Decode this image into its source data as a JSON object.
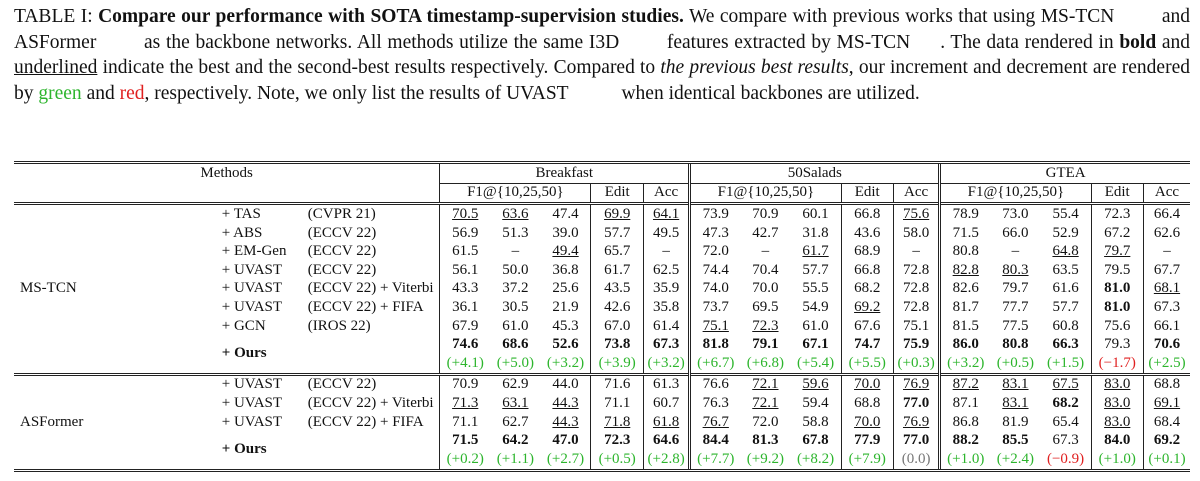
{
  "caption": {
    "label": "TABLE I:",
    "bold_title": "Compare our performance with SOTA timestamp-supervision studies.",
    "line1_rest": "We compare with previous works that",
    "line2_a": "using MS-TCN",
    "line2_b": "and ASFormer",
    "line2_c": "as the backbone networks. All methods utilize the same I3D",
    "line2_d": "features extracted",
    "line3_a": "by MS-TCN",
    "line3_b": ". The data rendered in",
    "line3_bold": "bold",
    "line3_c": "and",
    "line3_underline": "underlined",
    "line3_d": "indicate the best and the second-best results respectively.",
    "line4_a": "Compared to",
    "line4_italic": "the previous best results",
    "line4_b": ", our increment and decrement are rendered by",
    "line4_green": "green",
    "line4_c": "and",
    "line4_red": "red",
    "line4_d": ", respectively. Note, we",
    "line5_a": "only list the results of UVAST",
    "line5_b": "when identical backbones are utilized."
  },
  "table": {
    "header": {
      "methods": "Methods",
      "datasets": [
        "Breakfast",
        "50Salads",
        "GTEA"
      ],
      "sub": [
        "F1@{10,25,50}",
        "Edit",
        "Acc"
      ]
    },
    "groups": [
      {
        "name": "MS-TCN",
        "rows": [
          {
            "method": "+ TAS",
            "venue": "(CVPR 21)",
            "cells": [
              [
                "70.5",
                "u"
              ],
              [
                "63.6",
                "u"
              ],
              [
                "47.4",
                ""
              ],
              [
                "69.9",
                "u"
              ],
              [
                "64.1",
                "u"
              ],
              [
                "73.9",
                ""
              ],
              [
                "70.9",
                ""
              ],
              [
                "60.1",
                ""
              ],
              [
                "66.8",
                ""
              ],
              [
                "75.6",
                "u"
              ],
              [
                "78.9",
                ""
              ],
              [
                "73.0",
                ""
              ],
              [
                "55.4",
                ""
              ],
              [
                "72.3",
                ""
              ],
              [
                "66.4",
                ""
              ]
            ]
          },
          {
            "method": "+ ABS",
            "venue": "(ECCV 22)",
            "cells": [
              [
                "56.9",
                ""
              ],
              [
                "51.3",
                ""
              ],
              [
                "39.0",
                ""
              ],
              [
                "57.7",
                ""
              ],
              [
                "49.5",
                ""
              ],
              [
                "47.3",
                ""
              ],
              [
                "42.7",
                ""
              ],
              [
                "31.8",
                ""
              ],
              [
                "43.6",
                ""
              ],
              [
                "58.0",
                ""
              ],
              [
                "71.5",
                ""
              ],
              [
                "66.0",
                ""
              ],
              [
                "52.9",
                ""
              ],
              [
                "67.2",
                ""
              ],
              [
                "62.6",
                ""
              ]
            ]
          },
          {
            "method": "+ EM-Gen",
            "venue": "(ECCV 22)",
            "cells": [
              [
                "61.5",
                ""
              ],
              [
                "–",
                ""
              ],
              [
                "49.4",
                "u"
              ],
              [
                "65.7",
                ""
              ],
              [
                "–",
                ""
              ],
              [
                "72.0",
                ""
              ],
              [
                "–",
                ""
              ],
              [
                "61.7",
                "u"
              ],
              [
                "68.9",
                ""
              ],
              [
                "–",
                ""
              ],
              [
                "80.8",
                ""
              ],
              [
                "–",
                ""
              ],
              [
                "64.8",
                "u"
              ],
              [
                "79.7",
                "u"
              ],
              [
                "–",
                ""
              ]
            ]
          },
          {
            "method": "+ UVAST",
            "venue": "(ECCV 22)",
            "cells": [
              [
                "56.1",
                ""
              ],
              [
                "50.0",
                ""
              ],
              [
                "36.8",
                ""
              ],
              [
                "61.7",
                ""
              ],
              [
                "62.5",
                ""
              ],
              [
                "74.4",
                ""
              ],
              [
                "70.4",
                ""
              ],
              [
                "57.7",
                ""
              ],
              [
                "66.8",
                ""
              ],
              [
                "72.8",
                ""
              ],
              [
                "82.8",
                "u"
              ],
              [
                "80.3",
                "u"
              ],
              [
                "63.5",
                ""
              ],
              [
                "79.5",
                ""
              ],
              [
                "67.7",
                ""
              ]
            ]
          },
          {
            "method": "+ UVAST",
            "venue": "(ECCV 22) + Viterbi",
            "cells": [
              [
                "43.3",
                ""
              ],
              [
                "37.2",
                ""
              ],
              [
                "25.6",
                ""
              ],
              [
                "43.5",
                ""
              ],
              [
                "35.9",
                ""
              ],
              [
                "74.0",
                ""
              ],
              [
                "70.0",
                ""
              ],
              [
                "55.5",
                ""
              ],
              [
                "68.2",
                ""
              ],
              [
                "72.8",
                ""
              ],
              [
                "82.6",
                ""
              ],
              [
                "79.7",
                ""
              ],
              [
                "61.6",
                ""
              ],
              [
                "81.0",
                "b"
              ],
              [
                "68.1",
                "u"
              ]
            ]
          },
          {
            "method": "+ UVAST",
            "venue": "(ECCV 22) + FIFA",
            "cells": [
              [
                "36.1",
                ""
              ],
              [
                "30.5",
                ""
              ],
              [
                "21.9",
                ""
              ],
              [
                "42.6",
                ""
              ],
              [
                "35.8",
                ""
              ],
              [
                "73.7",
                ""
              ],
              [
                "69.5",
                ""
              ],
              [
                "54.9",
                ""
              ],
              [
                "69.2",
                "u"
              ],
              [
                "72.8",
                ""
              ],
              [
                "81.7",
                ""
              ],
              [
                "77.7",
                ""
              ],
              [
                "57.7",
                ""
              ],
              [
                "81.0",
                "b"
              ],
              [
                "67.3",
                ""
              ]
            ]
          },
          {
            "method": "+ GCN",
            "venue": "(IROS 22)",
            "cells": [
              [
                "67.9",
                ""
              ],
              [
                "61.0",
                ""
              ],
              [
                "45.3",
                ""
              ],
              [
                "67.0",
                ""
              ],
              [
                "61.4",
                ""
              ],
              [
                "75.1",
                "u"
              ],
              [
                "72.3",
                "u"
              ],
              [
                "61.0",
                ""
              ],
              [
                "67.6",
                ""
              ],
              [
                "75.1",
                ""
              ],
              [
                "81.5",
                ""
              ],
              [
                "77.5",
                ""
              ],
              [
                "60.8",
                ""
              ],
              [
                "75.6",
                ""
              ],
              [
                "66.1",
                ""
              ]
            ]
          }
        ],
        "ours": {
          "method": "+ Ours",
          "cells": [
            [
              "74.6",
              "b"
            ],
            [
              "68.6",
              "b"
            ],
            [
              "52.6",
              "b"
            ],
            [
              "73.8",
              "b"
            ],
            [
              "67.3",
              "b"
            ],
            [
              "81.8",
              "b"
            ],
            [
              "79.1",
              "b"
            ],
            [
              "67.1",
              "b"
            ],
            [
              "74.7",
              "b"
            ],
            [
              "75.9",
              "b"
            ],
            [
              "86.0",
              "b"
            ],
            [
              "80.8",
              "b"
            ],
            [
              "66.3",
              "b"
            ],
            [
              "79.3",
              ""
            ],
            [
              "70.6",
              "b"
            ]
          ],
          "deltas": [
            [
              "(+4.1)",
              "p"
            ],
            [
              "(+5.0)",
              "p"
            ],
            [
              "(+3.2)",
              "p"
            ],
            [
              "(+3.9)",
              "p"
            ],
            [
              "(+3.2)",
              "p"
            ],
            [
              "(+6.7)",
              "p"
            ],
            [
              "(+6.8)",
              "p"
            ],
            [
              "(+5.4)",
              "p"
            ],
            [
              "(+5.5)",
              "p"
            ],
            [
              "(+0.3)",
              "p"
            ],
            [
              "(+3.2)",
              "p"
            ],
            [
              "(+0.5)",
              "p"
            ],
            [
              "(+1.5)",
              "p"
            ],
            [
              "(−1.7)",
              "n"
            ],
            [
              "(+2.5)",
              "p"
            ]
          ]
        }
      },
      {
        "name": "ASFormer",
        "rows": [
          {
            "method": "+ UVAST",
            "venue": "(ECCV 22)",
            "cells": [
              [
                "70.9",
                ""
              ],
              [
                "62.9",
                ""
              ],
              [
                "44.0",
                ""
              ],
              [
                "71.6",
                ""
              ],
              [
                "61.3",
                ""
              ],
              [
                "76.6",
                ""
              ],
              [
                "72.1",
                "u"
              ],
              [
                "59.6",
                "u"
              ],
              [
                "70.0",
                "u"
              ],
              [
                "76.9",
                "u"
              ],
              [
                "87.2",
                "u"
              ],
              [
                "83.1",
                "u"
              ],
              [
                "67.5",
                "u"
              ],
              [
                "83.0",
                "u"
              ],
              [
                "68.8",
                ""
              ]
            ]
          },
          {
            "method": "+ UVAST",
            "venue": "(ECCV 22) + Viterbi",
            "cells": [
              [
                "71.3",
                "u"
              ],
              [
                "63.1",
                "u"
              ],
              [
                "44.3",
                "u"
              ],
              [
                "71.1",
                ""
              ],
              [
                "60.7",
                ""
              ],
              [
                "76.3",
                ""
              ],
              [
                "72.1",
                "u"
              ],
              [
                "59.4",
                ""
              ],
              [
                "68.8",
                ""
              ],
              [
                "77.0",
                "b"
              ],
              [
                "87.1",
                ""
              ],
              [
                "83.1",
                "u"
              ],
              [
                "68.2",
                "b"
              ],
              [
                "83.0",
                "u"
              ],
              [
                "69.1",
                "u"
              ]
            ]
          },
          {
            "method": "+ UVAST",
            "venue": "(ECCV 22) + FIFA",
            "cells": [
              [
                "71.1",
                ""
              ],
              [
                "62.7",
                ""
              ],
              [
                "44.3",
                "u"
              ],
              [
                "71.8",
                "u"
              ],
              [
                "61.8",
                "u"
              ],
              [
                "76.7",
                "u"
              ],
              [
                "72.0",
                ""
              ],
              [
                "58.8",
                ""
              ],
              [
                "70.0",
                "u"
              ],
              [
                "76.9",
                "u"
              ],
              [
                "86.8",
                ""
              ],
              [
                "81.9",
                ""
              ],
              [
                "65.4",
                ""
              ],
              [
                "83.0",
                "u"
              ],
              [
                "68.4",
                ""
              ]
            ]
          }
        ],
        "ours": {
          "method": "+ Ours",
          "cells": [
            [
              "71.5",
              "b"
            ],
            [
              "64.2",
              "b"
            ],
            [
              "47.0",
              "b"
            ],
            [
              "72.3",
              "b"
            ],
            [
              "64.6",
              "b"
            ],
            [
              "84.4",
              "b"
            ],
            [
              "81.3",
              "b"
            ],
            [
              "67.8",
              "b"
            ],
            [
              "77.9",
              "b"
            ],
            [
              "77.0",
              "b"
            ],
            [
              "88.2",
              "b"
            ],
            [
              "85.5",
              "b"
            ],
            [
              "67.3",
              ""
            ],
            [
              "84.0",
              "b"
            ],
            [
              "69.2",
              "b"
            ]
          ],
          "deltas": [
            [
              "(+0.2)",
              "p"
            ],
            [
              "(+1.1)",
              "p"
            ],
            [
              "(+2.7)",
              "p"
            ],
            [
              "(+0.5)",
              "p"
            ],
            [
              "(+2.8)",
              "p"
            ],
            [
              "(+7.7)",
              "p"
            ],
            [
              "(+9.2)",
              "p"
            ],
            [
              "(+8.2)",
              "p"
            ],
            [
              "(+7.9)",
              "p"
            ],
            [
              "(0.0)",
              "z"
            ],
            [
              "(+1.0)",
              "p"
            ],
            [
              "(+2.4)",
              "p"
            ],
            [
              "(−0.9)",
              "n"
            ],
            [
              "(+1.0)",
              "p"
            ],
            [
              "(+0.1)",
              "p"
            ]
          ]
        }
      }
    ]
  }
}
